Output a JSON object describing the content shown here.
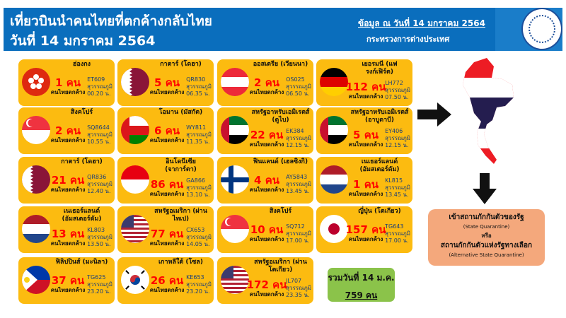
{
  "header": {
    "title_line1": "เที่ยวบินนำคนไทยที่ตกค้างกลับไทย",
    "title_line2": "วันที่ 14 มกราคม 2564",
    "as_of": "ข้อมูล ณ วันที่ 14 มกราคม 2564",
    "ministry": "กระทรวงการต่างประเทศ"
  },
  "labels": {
    "stuck": "คนไทยตกค้าง",
    "airport": "สุวรรณภูมิ"
  },
  "flights": [
    {
      "name": "ฮ่องกง",
      "flag": "hong-kong",
      "count": "1 คน",
      "flight": "ET609",
      "time": "00.20 น."
    },
    {
      "name": "กาตาร์ (โดฮา)",
      "flag": "qatar",
      "count": "5 คน",
      "flight": "QR830",
      "time": "06.35 น."
    },
    {
      "name": "ออสเตรีย (เวียนนา)",
      "flag": "austria",
      "count": "2 คน",
      "flight": "OS025",
      "time": "06.50 น."
    },
    {
      "name": "เยอรมนี (แฟรงก์เฟิร์ต)",
      "flag": "germany",
      "count": "112 คน",
      "flight": "LH772",
      "time": "07.50 น."
    },
    {
      "name": "สิงคโปร์",
      "flag": "singapore",
      "count": "2 คน",
      "flight": "SQ8644",
      "time": "10.55 น."
    },
    {
      "name": "โอมาน (มัสกัต)",
      "flag": "oman",
      "count": "6 คน",
      "flight": "WY811",
      "time": "11.35 น."
    },
    {
      "name": "สหรัฐอาหรับเอมิเรตส์ (ดูไบ)",
      "flag": "uae",
      "count": "22 คน",
      "flight": "EK384",
      "time": "12.15 น."
    },
    {
      "name": "สหรัฐอาหรับเอมิเรตส์ (อาบูดาบี)",
      "flag": "uae",
      "count": "5 คน",
      "flight": "EY406",
      "time": "12.15 น."
    },
    {
      "name": "กาตาร์ (โดฮา)",
      "flag": "qatar",
      "count": "21 คน",
      "flight": "QR836",
      "time": "12.40 น."
    },
    {
      "name": "อินโดนีเซีย (จาการ์ตา)",
      "flag": "indonesia",
      "count": "86 คน",
      "flight": "GA866",
      "time": "13.10 น."
    },
    {
      "name": "ฟินแลนด์ (เฮลซิงกิ)",
      "flag": "finland",
      "count": "4 คน",
      "flight": "AY5843",
      "time": "13.45 น."
    },
    {
      "name": "เนเธอร์แลนด์ (อัมสเตอร์ดัม)",
      "flag": "netherlands",
      "count": "1 คน",
      "flight": "KL815",
      "time": "13.45 น."
    },
    {
      "name": "เนเธอร์แลนด์ (อัมสเตอร์ดัม)",
      "flag": "netherlands",
      "count": "13 คน",
      "flight": "KL803",
      "time": "13.50 น."
    },
    {
      "name": "สหรัฐอเมริกา (ผ่านไทเป)",
      "flag": "usa",
      "count": "77 คน",
      "flight": "CX653",
      "time": "14.05 น."
    },
    {
      "name": "สิงคโปร์",
      "flag": "singapore",
      "count": "10 คน",
      "flight": "SQ712",
      "time": "17.00 น."
    },
    {
      "name": "ญี่ปุ่น (โตเกียว)",
      "flag": "japan",
      "count": "157 คน",
      "flight": "TG643",
      "time": "17.00 น."
    },
    {
      "name": "ฟิลิปปินส์ (มะนิลา)",
      "flag": "philippines",
      "count": "37 คน",
      "flight": "TG625",
      "time": "23.20 น."
    },
    {
      "name": "เกาหลีใต้ (โซล)",
      "flag": "south-korea",
      "count": "26 คน",
      "flight": "KE653",
      "time": "23.20 น."
    },
    {
      "name": "สหรัฐอเมริกา (ผ่านโตเกียว)",
      "flag": "usa",
      "count": "172 คน",
      "flight": "JL707",
      "time": "23.35 น."
    }
  ],
  "total": {
    "label": "รวมวันที่ 14 ม.ค.",
    "value": "759 คน"
  },
  "quarantine": {
    "line1": "เข้าสถานกักกันตัวของรัฐ",
    "line1_en": "(State Quarantine)",
    "or": "หรือ",
    "line2": "สถานกักกันตัวแห่งรัฐทางเลือก",
    "line2_en": "(Alternative State Quarantine)"
  },
  "colors": {
    "header": "#0a6ebd",
    "card": "#fcbb10",
    "count": "#ff0000",
    "total": "#8bc34a",
    "quarantine": "#f4a87c"
  }
}
